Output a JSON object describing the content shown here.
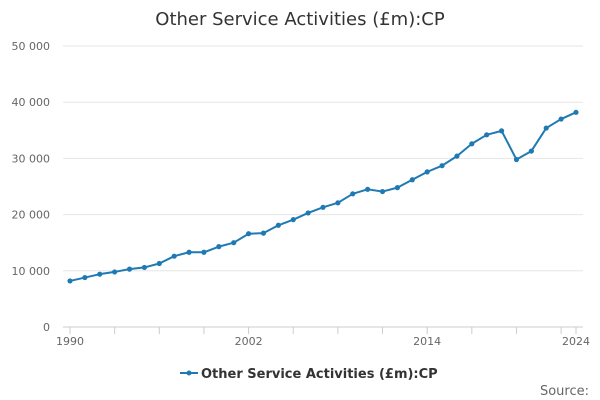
{
  "chart_data": {
    "type": "line",
    "title": "Other Service Activities (£m):CP",
    "xlabel": "",
    "ylabel": "",
    "x": [
      1990,
      1991,
      1992,
      1993,
      1994,
      1995,
      1996,
      1997,
      1998,
      1999,
      2000,
      2001,
      2002,
      2003,
      2004,
      2005,
      2006,
      2007,
      2008,
      2009,
      2010,
      2011,
      2012,
      2013,
      2014,
      2015,
      2016,
      2017,
      2018,
      2019,
      2020,
      2021,
      2022,
      2023,
      2024
    ],
    "x_ticks": [
      "1990",
      "2002",
      "2014",
      "2024"
    ],
    "xlim": [
      1990,
      2024
    ],
    "y_ticks": [
      "0",
      "10 000",
      "20 000",
      "30 000",
      "40 000",
      "50 000"
    ],
    "ylim": [
      0,
      50000
    ],
    "grid": true,
    "legend_position": "bottom",
    "series": [
      {
        "name": "Other Service Activities (£m):CP",
        "color": "#1f7ab4",
        "values": [
          8200,
          8800,
          9400,
          9800,
          10300,
          10600,
          11300,
          12600,
          13300,
          13300,
          14300,
          15000,
          16600,
          16700,
          18100,
          19100,
          20300,
          21300,
          22100,
          23700,
          24500,
          24100,
          24800,
          26200,
          27600,
          28700,
          30400,
          32600,
          34200,
          34900,
          29800,
          31300,
          35400,
          37000,
          38200
        ]
      }
    ],
    "source_label": "Source:"
  }
}
